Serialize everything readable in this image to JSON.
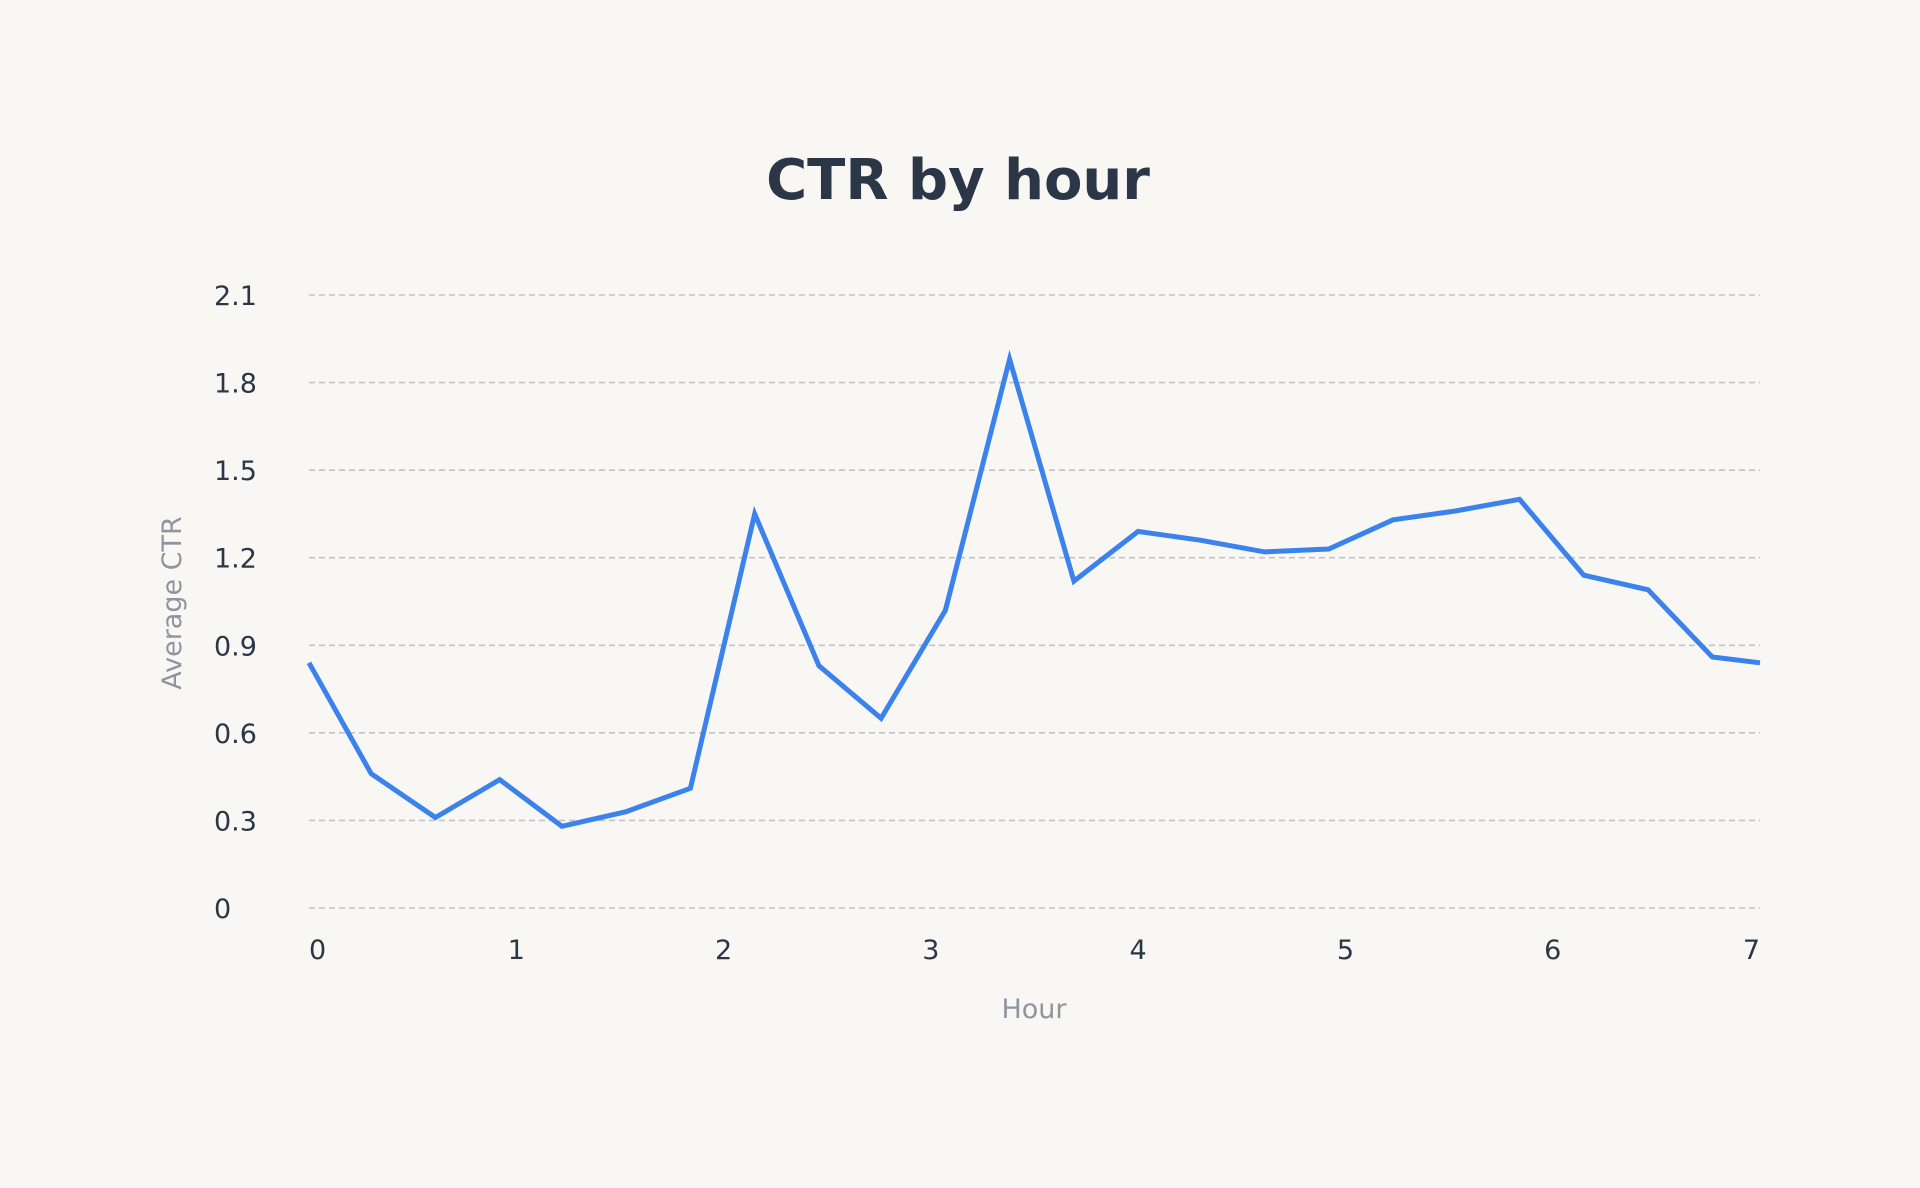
{
  "chart_data": {
    "type": "line",
    "title": "CTR by hour",
    "xlabel": "Hour",
    "ylabel": "Average CTR",
    "xlim": [
      0,
      7
    ],
    "ylim": [
      0,
      2.1
    ],
    "xticks": [
      "0",
      "1",
      "2",
      "3",
      "4",
      "5",
      "6",
      "7"
    ],
    "yticks": [
      "0",
      "0.3",
      "0.6",
      "0.9",
      "1.2",
      "1.5",
      "1.8",
      "2.1"
    ],
    "grid": "horizontal dashed",
    "color": "#3b82ec",
    "series": [
      {
        "x": [
          0,
          0.3,
          0.61,
          0.92,
          1.22,
          1.53,
          1.84,
          2.15,
          2.46,
          2.76,
          3.07,
          3.38,
          3.69,
          4.0,
          4.3,
          4.61,
          4.92,
          5.23,
          5.53,
          5.84,
          6.15,
          6.46,
          6.77,
          7.0
        ],
        "values": [
          0.84,
          0.46,
          0.31,
          0.44,
          0.28,
          0.33,
          0.41,
          1.35,
          0.83,
          0.65,
          1.02,
          1.88,
          1.12,
          1.29,
          1.26,
          1.22,
          1.23,
          1.33,
          1.36,
          1.4,
          1.14,
          1.09,
          0.86,
          0.84
        ]
      }
    ]
  }
}
